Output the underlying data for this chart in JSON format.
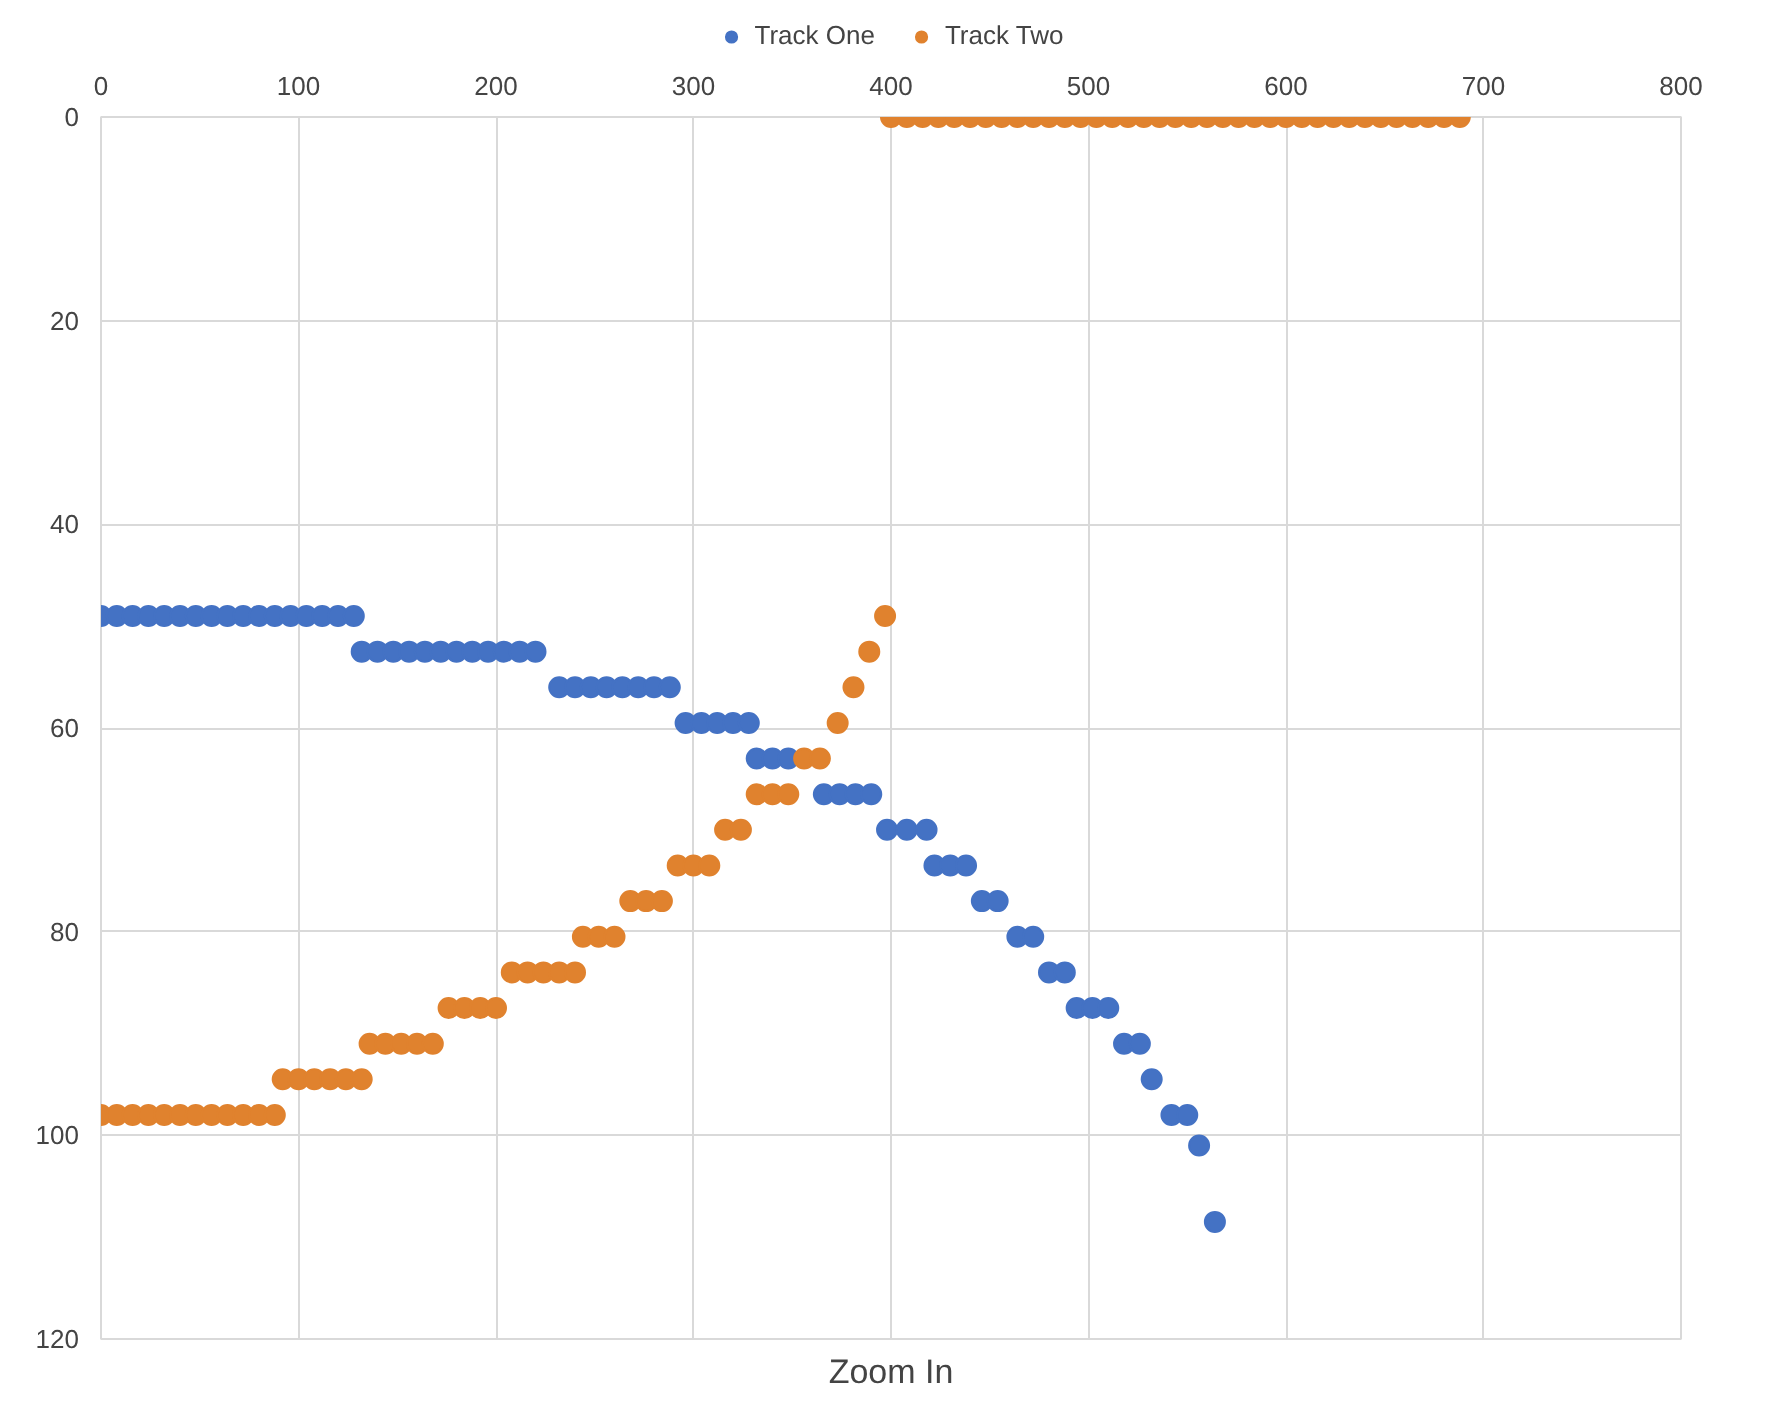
{
  "chart_data": {
    "type": "scatter",
    "xlabel": "Zoom In",
    "xlim": [
      0,
      800
    ],
    "ylim": [
      120,
      0
    ],
    "xticks": [
      0,
      100,
      200,
      300,
      400,
      500,
      600,
      700,
      800
    ],
    "yticks": [
      0,
      20,
      40,
      60,
      80,
      100,
      120
    ],
    "grid": true,
    "legend": "top",
    "marker": "circle",
    "series": [
      {
        "name": "Track One",
        "color": "#4472c4",
        "x": [
          0,
          8,
          16,
          24,
          32,
          40,
          48,
          56,
          64,
          72,
          80,
          88,
          96,
          104,
          112,
          120,
          128,
          132,
          140,
          148,
          156,
          164,
          172,
          180,
          188,
          196,
          204,
          212,
          220,
          232,
          240,
          248,
          256,
          264,
          272,
          280,
          288,
          296,
          304,
          312,
          320,
          328,
          332,
          340,
          348,
          366,
          374,
          382,
          390,
          398,
          408,
          418,
          422,
          430,
          438,
          446,
          454,
          464,
          472,
          480,
          488,
          494,
          502,
          510,
          518,
          526,
          532,
          542,
          550,
          556,
          564
        ],
        "values": [
          49,
          49,
          49,
          49,
          49,
          49,
          49,
          49,
          49,
          49,
          49,
          49,
          49,
          49,
          49,
          49,
          49,
          52.5,
          52.5,
          52.5,
          52.5,
          52.5,
          52.5,
          52.5,
          52.5,
          52.5,
          52.5,
          52.5,
          52.5,
          56,
          56,
          56,
          56,
          56,
          56,
          56,
          56,
          59.5,
          59.5,
          59.5,
          59.5,
          59.5,
          63,
          63,
          63,
          66.5,
          66.5,
          66.5,
          66.5,
          70,
          70,
          70,
          73.5,
          73.5,
          73.5,
          77,
          77,
          80.5,
          80.5,
          84,
          84,
          87.5,
          87.5,
          87.5,
          91,
          91,
          94.5,
          98,
          98,
          101,
          108.5
        ]
      },
      {
        "name": "Track Two",
        "color": "#e0822e",
        "x": [
          0,
          8,
          16,
          24,
          32,
          40,
          48,
          56,
          64,
          72,
          80,
          88,
          92,
          100,
          108,
          116,
          124,
          132,
          136,
          144,
          152,
          160,
          168,
          176,
          184,
          192,
          200,
          208,
          216,
          224,
          232,
          240,
          244,
          252,
          260,
          268,
          276,
          284,
          292,
          300,
          308,
          316,
          324,
          332,
          340,
          348,
          356,
          364,
          373,
          381,
          389,
          397,
          400,
          408,
          416,
          424,
          432,
          440,
          448,
          456,
          464,
          472,
          480,
          488,
          496,
          504,
          512,
          520,
          528,
          536,
          544,
          552,
          560,
          568,
          576,
          584,
          592,
          600,
          608,
          616,
          624,
          632,
          640,
          648,
          656,
          664,
          672,
          680,
          688
        ],
        "values": [
          98,
          98,
          98,
          98,
          98,
          98,
          98,
          98,
          98,
          98,
          98,
          98,
          94.5,
          94.5,
          94.5,
          94.5,
          94.5,
          94.5,
          91,
          91,
          91,
          91,
          91,
          87.5,
          87.5,
          87.5,
          87.5,
          84,
          84,
          84,
          84,
          84,
          80.5,
          80.5,
          80.5,
          77,
          77,
          77,
          73.5,
          73.5,
          73.5,
          70,
          70,
          66.5,
          66.5,
          66.5,
          63,
          63,
          59.5,
          56,
          52.5,
          49,
          0,
          0,
          0,
          0,
          0,
          0,
          0,
          0,
          0,
          0,
          0,
          0,
          0,
          0,
          0,
          0,
          0,
          0,
          0,
          0,
          0,
          0,
          0,
          0,
          0,
          0,
          0,
          0,
          0,
          0,
          0,
          0,
          0,
          0,
          0,
          0,
          0
        ]
      }
    ]
  }
}
